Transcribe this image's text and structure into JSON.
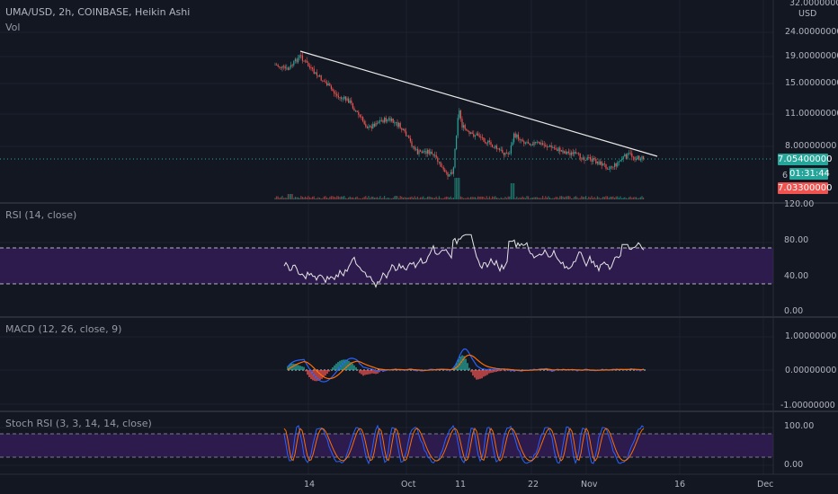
{
  "header": {
    "symbol_line": "UMA/USD, 2h, COINBASE, Heikin Ashi",
    "volume_label": "Vol"
  },
  "price_axis": {
    "currency": "USD",
    "ticks": [
      "32.00000000",
      "24.00000000",
      "19.00000000",
      "15.00000000",
      "11.00000000",
      "8.00000000",
      "6"
    ]
  },
  "price_tags": {
    "last_price": "7.05400000",
    "countdown": "01:31:44",
    "low_price": "7.03300000"
  },
  "rsi_panel": {
    "label": "RSI (14, close)",
    "ticks": [
      "120.00",
      "80.00",
      "40.00",
      "0.00"
    ]
  },
  "macd_panel": {
    "label": "MACD (12, 26, close, 9)",
    "ticks": [
      "1.00000000",
      "0.00000000",
      "-1.00000000"
    ]
  },
  "stoch_panel": {
    "label": "Stoch RSI (3, 3, 14, 14, close)",
    "ticks": [
      "100.00",
      "0.00"
    ]
  },
  "time_axis": {
    "ticks": [
      "14",
      "Oct",
      "11",
      "22",
      "Nov",
      "16",
      "Dec"
    ]
  },
  "colors": {
    "background": "#131722",
    "up_candle": "#26a69a",
    "down_candle": "#ef5350",
    "band_fill": "#2d1b4e",
    "trendline": "#e8e8e8",
    "macd_line": "#2962ff",
    "signal_line": "#ff6d00"
  }
}
